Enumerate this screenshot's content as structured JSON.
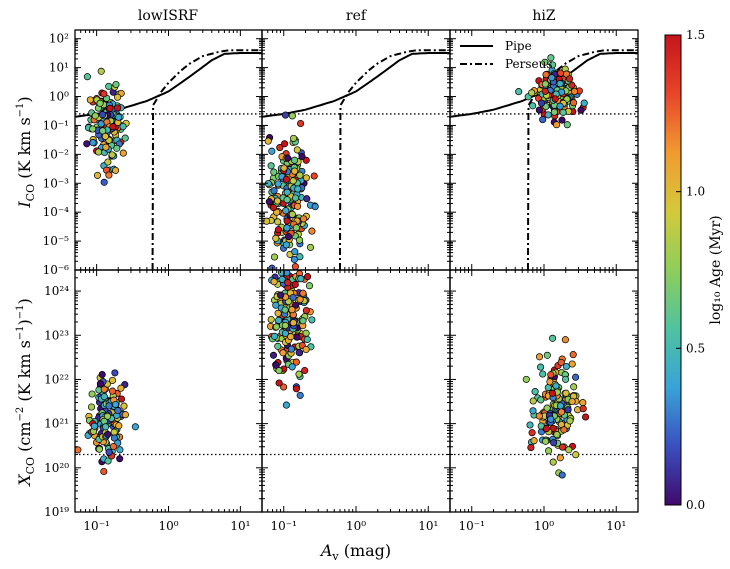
{
  "chart_data": {
    "type": "scatter",
    "panel_titles": [
      "lowISRF",
      "ref",
      "hiZ"
    ],
    "xlabel": "A_v (mag)",
    "x_scale": "log",
    "xlim": [
      0.05,
      20
    ],
    "x_ticks": [
      0.1,
      1,
      10
    ],
    "x_tick_labels": [
      "10⁻¹",
      "10⁰",
      "10¹"
    ],
    "top_row": {
      "ylabel": "I_CO (K km s⁻¹)",
      "y_scale": "log",
      "ylim": [
        1e-06,
        200
      ],
      "y_tick_labels": [
        "10⁻⁶",
        "10⁻⁵",
        "10⁻⁴",
        "10⁻³",
        "10⁻²",
        "10⁻¹",
        "10⁰",
        "10¹",
        "10²"
      ],
      "reference_level": 0.25,
      "legend": [
        {
          "label": "Pipe",
          "style": "solid"
        },
        {
          "label": "Perseus",
          "style": "dashdot"
        }
      ],
      "legend_placement": "top-left (hiZ panel)",
      "pipe_curve": {
        "x": [
          0.05,
          0.1,
          0.2,
          0.5,
          1,
          2,
          4,
          6,
          10,
          20
        ],
        "y": [
          0.2,
          0.25,
          0.35,
          0.7,
          1.5,
          5,
          18,
          30,
          32,
          32
        ]
      },
      "perseus_curve": {
        "x": [
          0.6,
          0.61,
          0.8,
          1,
          1.5,
          2,
          3,
          5,
          7,
          10,
          20
        ],
        "y": [
          1e-06,
          0.5,
          1.5,
          3,
          8,
          14,
          25,
          35,
          40,
          40,
          40
        ]
      },
      "perseus_cutoff_x": 0.6
    },
    "bottom_row": {
      "ylabel": "X_CO (cm⁻² (K km s⁻¹)⁻¹)",
      "y_scale": "log",
      "ylim": [
        1e+19,
        3e+24
      ],
      "y_tick_labels": [
        "10¹⁹",
        "10²⁰",
        "10²¹",
        "10²²",
        "10²³",
        "10²⁴"
      ],
      "reference_level": 2e+20
    },
    "colorbar": {
      "label": "log₁₀ Age (Myr)",
      "range": [
        0.0,
        1.5
      ],
      "tick_labels": [
        "0.0",
        "0.5",
        "1.0",
        "1.5"
      ],
      "colors": [
        "#3f0a6b",
        "#3a4fc0",
        "#39a3d8",
        "#4fc3a0",
        "#8fce5a",
        "#d4c93a",
        "#f29a30",
        "#e8452a",
        "#c5141c"
      ]
    },
    "scatter_clusters": {
      "lowISRF_top": {
        "x_center": 0.14,
        "x_sigma": 0.13,
        "y_log_center": -1.0,
        "y_log_sigma": 0.75,
        "n": 140,
        "age_bias": 0.5
      },
      "ref_top": {
        "x_center": 0.12,
        "x_sigma": 0.14,
        "y_log_center": -3.6,
        "y_log_sigma": 1.1,
        "n": 190,
        "age_bias": 0.5
      },
      "hiZ_top": {
        "x_center": 1.5,
        "x_sigma": 0.14,
        "y_log_center": 0.1,
        "y_log_sigma": 0.45,
        "n": 170,
        "age_bias": 0.5
      },
      "lowISRF_bottom": {
        "x_center": 0.14,
        "x_sigma": 0.12,
        "y_log_center": 21.1,
        "y_log_sigma": 0.45,
        "n": 150,
        "age_bias": 0.4
      },
      "ref_bottom": {
        "x_center": 0.12,
        "x_sigma": 0.13,
        "y_log_center": 23.4,
        "y_log_sigma": 0.7,
        "n": 190,
        "age_bias": 0.5
      },
      "hiZ_bottom": {
        "x_center": 1.5,
        "x_sigma": 0.14,
        "y_log_center": 21.3,
        "y_log_sigma": 0.55,
        "n": 170,
        "age_bias": 0.5
      }
    }
  }
}
